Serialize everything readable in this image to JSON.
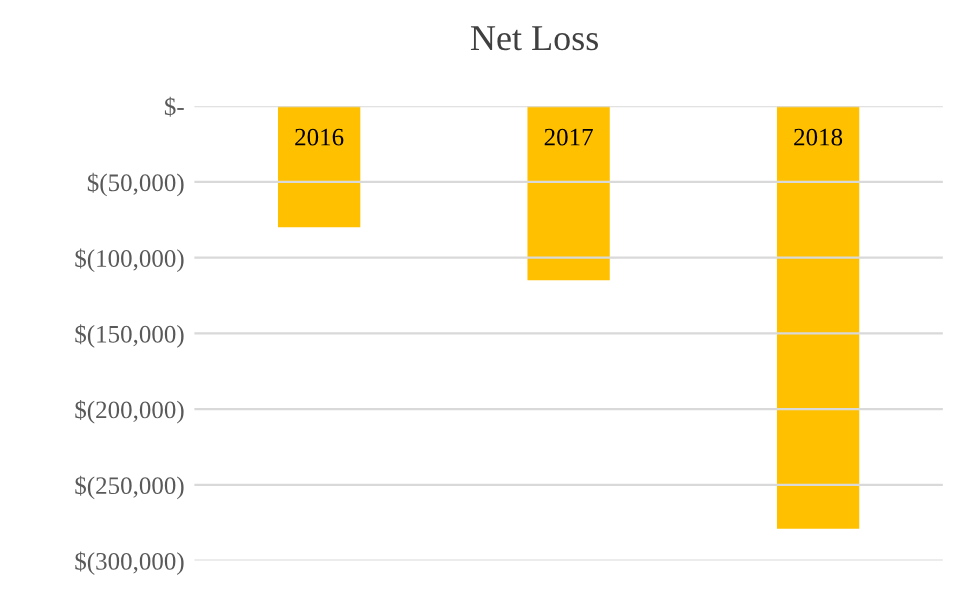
{
  "chart_data": {
    "type": "bar",
    "title": "Net Loss",
    "categories": [
      "2016",
      "2017",
      "2018"
    ],
    "values": [
      -80000,
      -115000,
      -279000
    ],
    "color": "#ffc000",
    "ylim": [
      -300000,
      0
    ],
    "yticks": [
      {
        "value": 0,
        "label": "$-"
      },
      {
        "value": -50000,
        "label": "$(50,000)"
      },
      {
        "value": -100000,
        "label": "$(100,000)"
      },
      {
        "value": -150000,
        "label": "$(150,000)"
      },
      {
        "value": -200000,
        "label": "$(200,000)"
      },
      {
        "value": -250000,
        "label": "$(250,000)"
      },
      {
        "value": -300000,
        "label": "$(300,000)"
      }
    ],
    "grid": "y"
  }
}
